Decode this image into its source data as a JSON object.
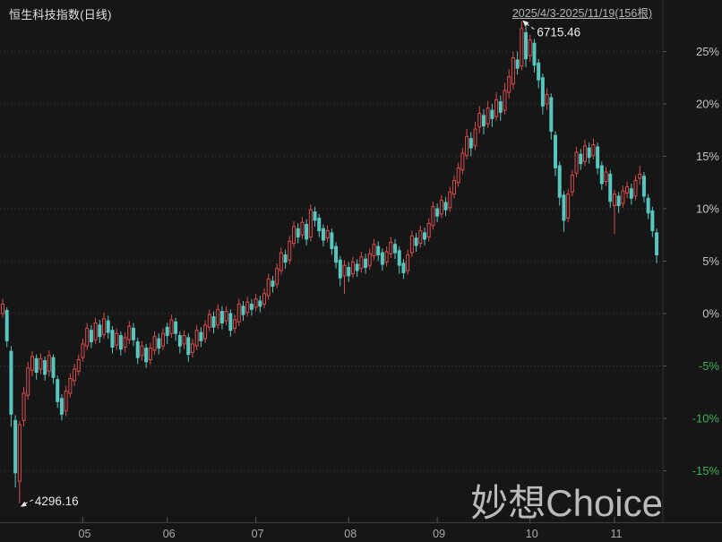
{
  "header": {
    "title": "恒生科技指数(日线)",
    "date_range": "2025/4/3-2025/11/19(156根)"
  },
  "watermark": "妙想Choice",
  "annotations": {
    "high_label": "6715.46",
    "low_label": "4296.16"
  },
  "colors": {
    "background": "#161616",
    "up": "#d94c4c",
    "down": "#57c6bf",
    "grid": "#383838",
    "axis_line": "#3e3e3e",
    "tick": "#555555",
    "label_positive": "#c6c3c3",
    "label_negative": "#3fae5a",
    "month_label": "#a9a9a9",
    "annotation": "#eaeaea"
  },
  "chart_data": {
    "type": "candlestick",
    "title": "恒生科技指数(日线)",
    "period": "2025/4/3-2025/11/19",
    "bar_count": 156,
    "unit": "percent change from 2025/4/2 close (base ≈ 5250)",
    "y_axis": {
      "unit": "%",
      "ticks": [
        25,
        20,
        15,
        10,
        5,
        0,
        -5,
        -10,
        -15
      ],
      "range": [
        -19.5,
        28.5
      ],
      "grid": "dotted"
    },
    "x_axis": {
      "months": [
        {
          "label": "05",
          "day": 19
        },
        {
          "label": "06",
          "day": 39
        },
        {
          "label": "07",
          "day": 60
        },
        {
          "label": "08",
          "day": 82
        },
        {
          "label": "09",
          "day": 103
        },
        {
          "label": "10",
          "day": 125
        },
        {
          "label": "11",
          "day": 145
        }
      ]
    },
    "high_point": {
      "value": 6715.46,
      "day": 123,
      "pct": 27.9
    },
    "low_point": {
      "value": 4296.16,
      "day": 4,
      "pct": -18.1
    },
    "candles_format": [
      "open_pct",
      "close_pct",
      "low_pct",
      "high_pct"
    ],
    "candles": [
      [
        0.0,
        0.9,
        -0.4,
        1.4
      ],
      [
        0.3,
        -2.6,
        -3.2,
        0.6
      ],
      [
        -3.6,
        -9.6,
        -10.8,
        -3.1
      ],
      [
        -10.2,
        -15.2,
        -16.6,
        -9.7
      ],
      [
        -16.0,
        -10.6,
        -18.1,
        -10.2
      ],
      [
        -10.2,
        -7.6,
        -10.8,
        -7.0
      ],
      [
        -7.8,
        -5.2,
        -8.2,
        -4.6
      ],
      [
        -5.4,
        -4.1,
        -6.0,
        -3.6
      ],
      [
        -4.3,
        -5.6,
        -6.3,
        -3.9
      ],
      [
        -5.3,
        -4.3,
        -5.8,
        -3.8
      ],
      [
        -4.5,
        -5.8,
        -6.4,
        -4.1
      ],
      [
        -5.5,
        -4.0,
        -6.0,
        -3.5
      ],
      [
        -4.2,
        -6.1,
        -6.7,
        -3.9
      ],
      [
        -6.3,
        -8.4,
        -9.0,
        -5.9
      ],
      [
        -8.1,
        -9.6,
        -10.2,
        -7.7
      ],
      [
        -9.3,
        -7.4,
        -9.8,
        -6.9
      ],
      [
        -7.6,
        -6.2,
        -8.0,
        -5.7
      ],
      [
        -6.4,
        -5.3,
        -6.9,
        -4.8
      ],
      [
        -5.5,
        -4.4,
        -5.9,
        -3.9
      ],
      [
        -4.2,
        -2.9,
        -4.6,
        -2.4
      ],
      [
        -3.1,
        -1.4,
        -3.5,
        -0.9
      ],
      [
        -1.6,
        -2.7,
        -3.3,
        -1.1
      ],
      [
        -2.5,
        -0.9,
        -2.9,
        -0.4
      ],
      [
        -1.1,
        -2.2,
        -2.8,
        -0.6
      ],
      [
        -2.0,
        -0.5,
        -2.4,
        0.1
      ],
      [
        -0.7,
        -1.8,
        -2.4,
        -0.2
      ],
      [
        -1.6,
        -3.2,
        -3.8,
        -1.2
      ],
      [
        -3.0,
        -1.9,
        -3.5,
        -1.4
      ],
      [
        -2.1,
        -3.4,
        -4.0,
        -1.7
      ],
      [
        -3.2,
        -2.3,
        -3.7,
        -1.8
      ],
      [
        -2.5,
        -1.2,
        -2.9,
        -0.7
      ],
      [
        -1.4,
        -2.5,
        -3.1,
        -0.9
      ],
      [
        -2.7,
        -4.2,
        -4.8,
        -2.3
      ],
      [
        -4.0,
        -3.1,
        -4.5,
        -2.6
      ],
      [
        -3.3,
        -4.6,
        -5.2,
        -2.9
      ],
      [
        -4.4,
        -3.3,
        -4.9,
        -2.8
      ],
      [
        -3.5,
        -2.2,
        -3.9,
        -1.7
      ],
      [
        -2.4,
        -3.3,
        -3.9,
        -1.9
      ],
      [
        -3.1,
        -1.9,
        -3.5,
        -1.4
      ],
      [
        -1.3,
        -2.1,
        -2.9,
        -0.9
      ],
      [
        -1.9,
        -0.6,
        -2.3,
        -0.1
      ],
      [
        -0.8,
        -1.9,
        -2.6,
        -0.4
      ],
      [
        -2.1,
        -3.1,
        -3.8,
        -1.7
      ],
      [
        -2.9,
        -2.1,
        -3.4,
        -1.6
      ],
      [
        -2.3,
        -3.9,
        -4.6,
        -1.9
      ],
      [
        -3.7,
        -2.9,
        -4.2,
        -2.4
      ],
      [
        -3.1,
        -1.6,
        -3.5,
        -1.1
      ],
      [
        -1.8,
        -2.6,
        -3.2,
        -1.3
      ],
      [
        -2.4,
        -1.1,
        -2.8,
        -0.6
      ],
      [
        -1.3,
        -0.1,
        -1.7,
        0.4
      ],
      [
        -0.3,
        -1.3,
        -1.9,
        0.2
      ],
      [
        -1.1,
        0.4,
        -1.5,
        0.9
      ],
      [
        0.2,
        -0.9,
        -1.5,
        0.7
      ],
      [
        -0.7,
        0.2,
        -1.1,
        0.7
      ],
      [
        0.0,
        -1.6,
        -2.2,
        0.4
      ],
      [
        -1.4,
        -0.6,
        -1.9,
        -0.1
      ],
      [
        -0.8,
        0.9,
        -1.2,
        1.4
      ],
      [
        0.7,
        -0.1,
        -0.7,
        1.2
      ],
      [
        0.1,
        1.1,
        -0.3,
        1.6
      ],
      [
        0.9,
        0.4,
        -0.2,
        1.4
      ],
      [
        0.6,
        1.4,
        0.2,
        1.9
      ],
      [
        1.2,
        0.7,
        0.1,
        1.7
      ],
      [
        0.9,
        1.9,
        0.5,
        2.4
      ],
      [
        1.7,
        3.3,
        1.3,
        3.8
      ],
      [
        3.1,
        2.6,
        2.0,
        3.6
      ],
      [
        2.8,
        4.3,
        2.4,
        4.8
      ],
      [
        4.1,
        5.8,
        3.7,
        6.3
      ],
      [
        5.6,
        4.9,
        4.3,
        6.1
      ],
      [
        5.1,
        6.9,
        4.7,
        7.4
      ],
      [
        6.7,
        8.3,
        6.3,
        8.8
      ],
      [
        8.1,
        7.3,
        6.7,
        8.6
      ],
      [
        7.5,
        8.7,
        7.1,
        9.2
      ],
      [
        8.5,
        7.1,
        6.5,
        9.0
      ],
      [
        7.3,
        9.9,
        6.9,
        10.4
      ],
      [
        9.7,
        8.9,
        8.3,
        10.2
      ],
      [
        9.1,
        7.9,
        7.3,
        9.5
      ],
      [
        8.1,
        7.0,
        6.4,
        8.5
      ],
      [
        7.2,
        7.9,
        6.8,
        8.4
      ],
      [
        7.7,
        6.2,
        5.6,
        8.1
      ],
      [
        6.4,
        4.9,
        4.3,
        6.8
      ],
      [
        5.1,
        3.4,
        2.6,
        5.5
      ],
      [
        3.6,
        4.6,
        1.9,
        5.1
      ],
      [
        4.4,
        3.6,
        3.0,
        4.9
      ],
      [
        3.8,
        4.9,
        3.4,
        5.4
      ],
      [
        4.7,
        4.1,
        3.5,
        5.2
      ],
      [
        4.3,
        5.4,
        3.9,
        5.9
      ],
      [
        5.2,
        4.4,
        3.8,
        5.7
      ],
      [
        4.6,
        5.7,
        4.2,
        6.2
      ],
      [
        5.5,
        6.6,
        5.1,
        7.1
      ],
      [
        6.4,
        5.6,
        5.0,
        6.9
      ],
      [
        5.8,
        4.7,
        4.1,
        6.2
      ],
      [
        4.9,
        5.9,
        4.5,
        6.4
      ],
      [
        5.7,
        6.8,
        5.3,
        7.3
      ],
      [
        6.6,
        5.8,
        5.2,
        7.1
      ],
      [
        6.0,
        4.6,
        3.8,
        6.4
      ],
      [
        4.8,
        3.9,
        3.3,
        5.2
      ],
      [
        4.1,
        5.6,
        3.7,
        6.1
      ],
      [
        5.8,
        7.4,
        5.4,
        7.9
      ],
      [
        7.2,
        6.5,
        5.9,
        7.7
      ],
      [
        6.7,
        7.9,
        6.3,
        8.4
      ],
      [
        7.7,
        7.1,
        6.5,
        8.2
      ],
      [
        7.3,
        8.6,
        6.9,
        9.1
      ],
      [
        8.4,
        10.2,
        8.0,
        10.7
      ],
      [
        10.0,
        9.3,
        8.7,
        10.5
      ],
      [
        9.5,
        10.8,
        9.1,
        11.3
      ],
      [
        10.6,
        9.9,
        9.3,
        11.1
      ],
      [
        10.1,
        11.6,
        9.7,
        12.1
      ],
      [
        11.4,
        12.7,
        11.0,
        13.2
      ],
      [
        12.5,
        13.9,
        12.1,
        14.4
      ],
      [
        13.7,
        15.3,
        13.3,
        15.8
      ],
      [
        15.1,
        16.9,
        14.7,
        17.6
      ],
      [
        16.7,
        15.8,
        15.0,
        17.3
      ],
      [
        16.0,
        17.6,
        15.6,
        18.3
      ],
      [
        17.8,
        19.1,
        17.2,
        19.8
      ],
      [
        18.9,
        17.9,
        17.1,
        19.5
      ],
      [
        18.1,
        19.6,
        17.7,
        20.3
      ],
      [
        19.4,
        18.6,
        17.8,
        20.0
      ],
      [
        18.8,
        20.4,
        18.4,
        21.1
      ],
      [
        20.2,
        19.2,
        18.4,
        20.8
      ],
      [
        19.4,
        21.3,
        19.0,
        22.0
      ],
      [
        21.1,
        22.6,
        20.5,
        23.3
      ],
      [
        21.9,
        24.4,
        21.4,
        25.0
      ],
      [
        24.2,
        23.4,
        22.8,
        25.0
      ],
      [
        23.6,
        27.2,
        23.2,
        27.9
      ],
      [
        26.8,
        24.3,
        23.5,
        27.4
      ],
      [
        24.6,
        26.1,
        24.0,
        26.6
      ],
      [
        25.8,
        23.7,
        23.0,
        26.2
      ],
      [
        23.9,
        22.3,
        21.5,
        24.3
      ],
      [
        22.5,
        19.8,
        19.0,
        22.9
      ],
      [
        20.0,
        20.9,
        19.4,
        21.5
      ],
      [
        20.6,
        17.4,
        16.6,
        21.0
      ],
      [
        17.0,
        13.9,
        13.1,
        17.4
      ],
      [
        14.1,
        11.1,
        10.3,
        14.5
      ],
      [
        11.3,
        8.9,
        7.8,
        11.7
      ],
      [
        9.1,
        11.4,
        8.7,
        11.9
      ],
      [
        11.6,
        13.2,
        11.2,
        13.7
      ],
      [
        13.4,
        15.4,
        13.0,
        15.9
      ],
      [
        15.2,
        14.3,
        13.7,
        15.7
      ],
      [
        14.5,
        16.0,
        14.1,
        16.6
      ],
      [
        15.8,
        14.9,
        14.3,
        16.3
      ],
      [
        15.1,
        16.1,
        14.7,
        16.7
      ],
      [
        15.9,
        13.9,
        13.3,
        16.3
      ],
      [
        14.1,
        12.4,
        11.8,
        14.5
      ],
      [
        12.6,
        13.5,
        12.2,
        14.0
      ],
      [
        13.3,
        10.7,
        10.1,
        13.7
      ],
      [
        10.3,
        11.4,
        7.6,
        11.8
      ],
      [
        11.2,
        10.3,
        9.6,
        11.6
      ],
      [
        10.5,
        11.7,
        10.1,
        12.2
      ],
      [
        11.5,
        12.1,
        11.0,
        12.6
      ],
      [
        11.9,
        11.0,
        10.4,
        12.4
      ],
      [
        11.2,
        12.7,
        10.8,
        13.2
      ],
      [
        12.9,
        13.3,
        12.3,
        14.1
      ],
      [
        13.1,
        11.2,
        10.6,
        13.5
      ],
      [
        11.0,
        9.6,
        9.0,
        11.4
      ],
      [
        9.8,
        7.9,
        7.3,
        10.2
      ],
      [
        7.7,
        5.6,
        4.8,
        8.1
      ]
    ]
  }
}
